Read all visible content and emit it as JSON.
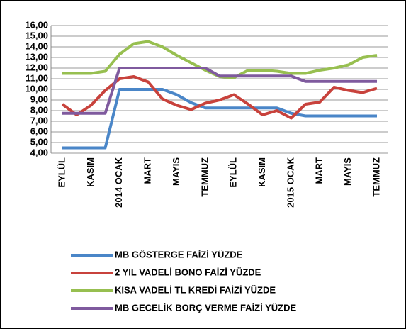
{
  "chart_data": {
    "type": "line",
    "categories": [
      "EYLÜL",
      null,
      "KASIM",
      null,
      "2014 OCAK",
      null,
      "MART",
      null,
      "MAYIS",
      null,
      "TEMMUZ",
      null,
      "EYLÜL",
      null,
      "KASIM",
      null,
      "2015 OCAK",
      null,
      "MART",
      null,
      "MAYIS",
      null,
      "TEMMUZ"
    ],
    "series": [
      {
        "name": "MB GÖSTERGE FAİZİ YÜZDE",
        "color": "#4a86c8",
        "values": [
          4.5,
          4.5,
          4.5,
          4.5,
          10,
          10,
          10,
          10,
          9.5,
          8.75,
          8.25,
          8.25,
          8.25,
          8.25,
          8.25,
          8.25,
          7.75,
          7.5,
          7.5,
          7.5,
          7.5,
          7.5,
          7.5
        ]
      },
      {
        "name": "2 YIL VADELİ BONO FAİZİ YÜZDE",
        "color": "#c8423c",
        "values": [
          8.6,
          7.6,
          8.5,
          9.9,
          11,
          11.2,
          10.7,
          9.1,
          8.5,
          8.1,
          8.7,
          9.0,
          9.5,
          8.6,
          7.6,
          8.0,
          7.3,
          8.6,
          8.8,
          10.2,
          9.9,
          9.7,
          10.1
        ]
      },
      {
        "name": "KISA VADELİ TL KREDİ FAİZİ YÜZDE",
        "color": "#97bf50",
        "values": [
          11.5,
          11.5,
          11.5,
          11.7,
          13.3,
          14.3,
          14.5,
          14.0,
          13.2,
          12.5,
          11.8,
          11.2,
          11.1,
          11.8,
          11.8,
          11.7,
          11.5,
          11.5,
          11.8,
          12.0,
          12.3,
          13.0,
          13.2
        ]
      },
      {
        "name": "MB GECELİK BORÇ VERME FAİZİ YÜZDE",
        "color": "#7f5a9e",
        "values": [
          7.75,
          7.75,
          7.75,
          7.75,
          12,
          12,
          12,
          12,
          12,
          12,
          12,
          11.25,
          11.25,
          11.25,
          11.25,
          11.25,
          11.25,
          10.75,
          10.75,
          10.75,
          10.75,
          10.75,
          10.75
        ]
      }
    ],
    "ylim": [
      4,
      16
    ],
    "yticks": [
      {
        "value": 4,
        "label": "4,00"
      },
      {
        "value": 5,
        "label": "5,00"
      },
      {
        "value": 6,
        "label": "6,00"
      },
      {
        "value": 7,
        "label": "7,00"
      },
      {
        "value": 8,
        "label": "8,00"
      },
      {
        "value": 9,
        "label": "9,00"
      },
      {
        "value": 10,
        "label": "10,00"
      },
      {
        "value": 11,
        "label": "11,00"
      },
      {
        "value": 12,
        "label": "12,00"
      },
      {
        "value": 13,
        "label": "13,00"
      },
      {
        "value": 14,
        "label": "14,00"
      },
      {
        "value": 15,
        "label": "15,00"
      },
      {
        "value": 16,
        "label": "16,00"
      }
    ],
    "grid": true,
    "legend": "bottom"
  }
}
